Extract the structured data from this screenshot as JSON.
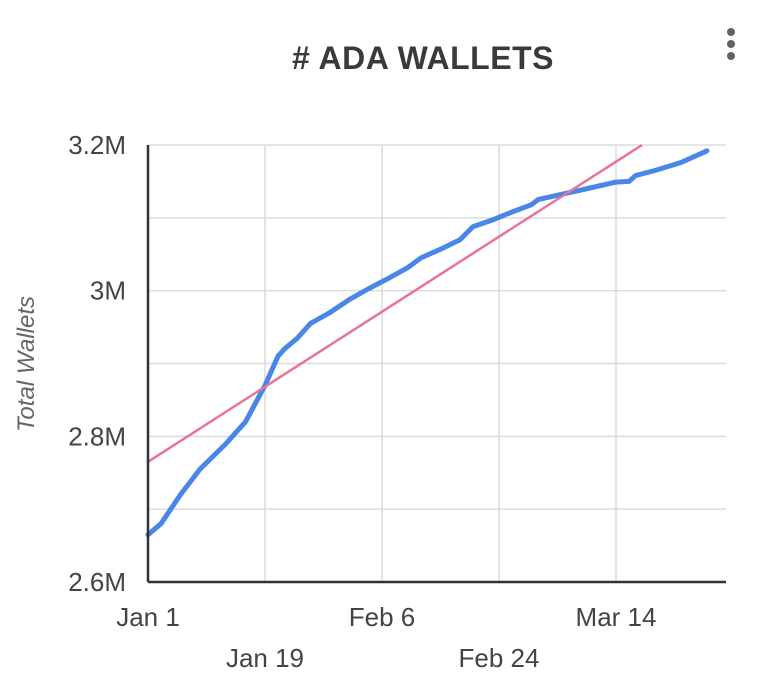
{
  "chart_data": {
    "type": "line",
    "title": "# ADA WALLETS",
    "xlabel": "",
    "ylabel": "Total Wallets",
    "x_axis": {
      "type": "date",
      "start": "Jan 1",
      "end": "Mar 28",
      "ticks": [
        {
          "label": "Jan 1",
          "date": "Jan 1"
        },
        {
          "label": "Jan 19",
          "date": "Jan 19"
        },
        {
          "label": "Feb 6",
          "date": "Feb 6"
        },
        {
          "label": "Feb 24",
          "date": "Feb 24"
        },
        {
          "label": "Mar 14",
          "date": "Mar 14"
        }
      ]
    },
    "y_axis": {
      "ylim": [
        2600000,
        3200000
      ],
      "ticks": [
        {
          "label": "2.6M",
          "value": 2600000
        },
        {
          "label": "2.8M",
          "value": 2800000
        },
        {
          "label": "3M",
          "value": 3000000
        },
        {
          "label": "3.2M",
          "value": 3200000
        }
      ]
    },
    "grid": true,
    "legend": "none",
    "series": [
      {
        "kind": "line",
        "color": "#4a86e8",
        "points": [
          {
            "x": "Jan 1",
            "y": 2665000
          },
          {
            "x": "Jan 3",
            "y": 2680000
          },
          {
            "x": "Jan 6",
            "y": 2720000
          },
          {
            "x": "Jan 9",
            "y": 2755000
          },
          {
            "x": "Jan 13",
            "y": 2790000
          },
          {
            "x": "Jan 16",
            "y": 2820000
          },
          {
            "x": "Jan 19",
            "y": 2870000
          },
          {
            "x": "Jan 21",
            "y": 2910000
          },
          {
            "x": "Jan 22",
            "y": 2920000
          },
          {
            "x": "Jan 24",
            "y": 2935000
          },
          {
            "x": "Jan 26",
            "y": 2955000
          },
          {
            "x": "Jan 29",
            "y": 2970000
          },
          {
            "x": "Feb 1",
            "y": 2988000
          },
          {
            "x": "Feb 4",
            "y": 3003000
          },
          {
            "x": "Feb 7",
            "y": 3017000
          },
          {
            "x": "Feb 10",
            "y": 3032000
          },
          {
            "x": "Feb 12",
            "y": 3045000
          },
          {
            "x": "Feb 15",
            "y": 3057000
          },
          {
            "x": "Feb 18",
            "y": 3070000
          },
          {
            "x": "Feb 20",
            "y": 3088000
          },
          {
            "x": "Feb 23",
            "y": 3097000
          },
          {
            "x": "Feb 26",
            "y": 3108000
          },
          {
            "x": "Mar 1",
            "y": 3118000
          },
          {
            "x": "Mar 2",
            "y": 3125000
          },
          {
            "x": "Mar 6",
            "y": 3133000
          },
          {
            "x": "Mar 10",
            "y": 3141000
          },
          {
            "x": "Mar 14",
            "y": 3149000
          },
          {
            "x": "Mar 16",
            "y": 3150000
          },
          {
            "x": "Mar 17",
            "y": 3158000
          },
          {
            "x": "Mar 20",
            "y": 3165000
          },
          {
            "x": "Mar 24",
            "y": 3176000
          },
          {
            "x": "Mar 28",
            "y": 3192000
          }
        ]
      },
      {
        "kind": "trendline",
        "color": "#e8739a",
        "points": [
          {
            "x": "Jan 1",
            "y": 2765000
          },
          {
            "x": "Mar 18",
            "y": 3200000
          }
        ]
      }
    ]
  },
  "menu": {
    "icon": "more-vert-icon"
  }
}
